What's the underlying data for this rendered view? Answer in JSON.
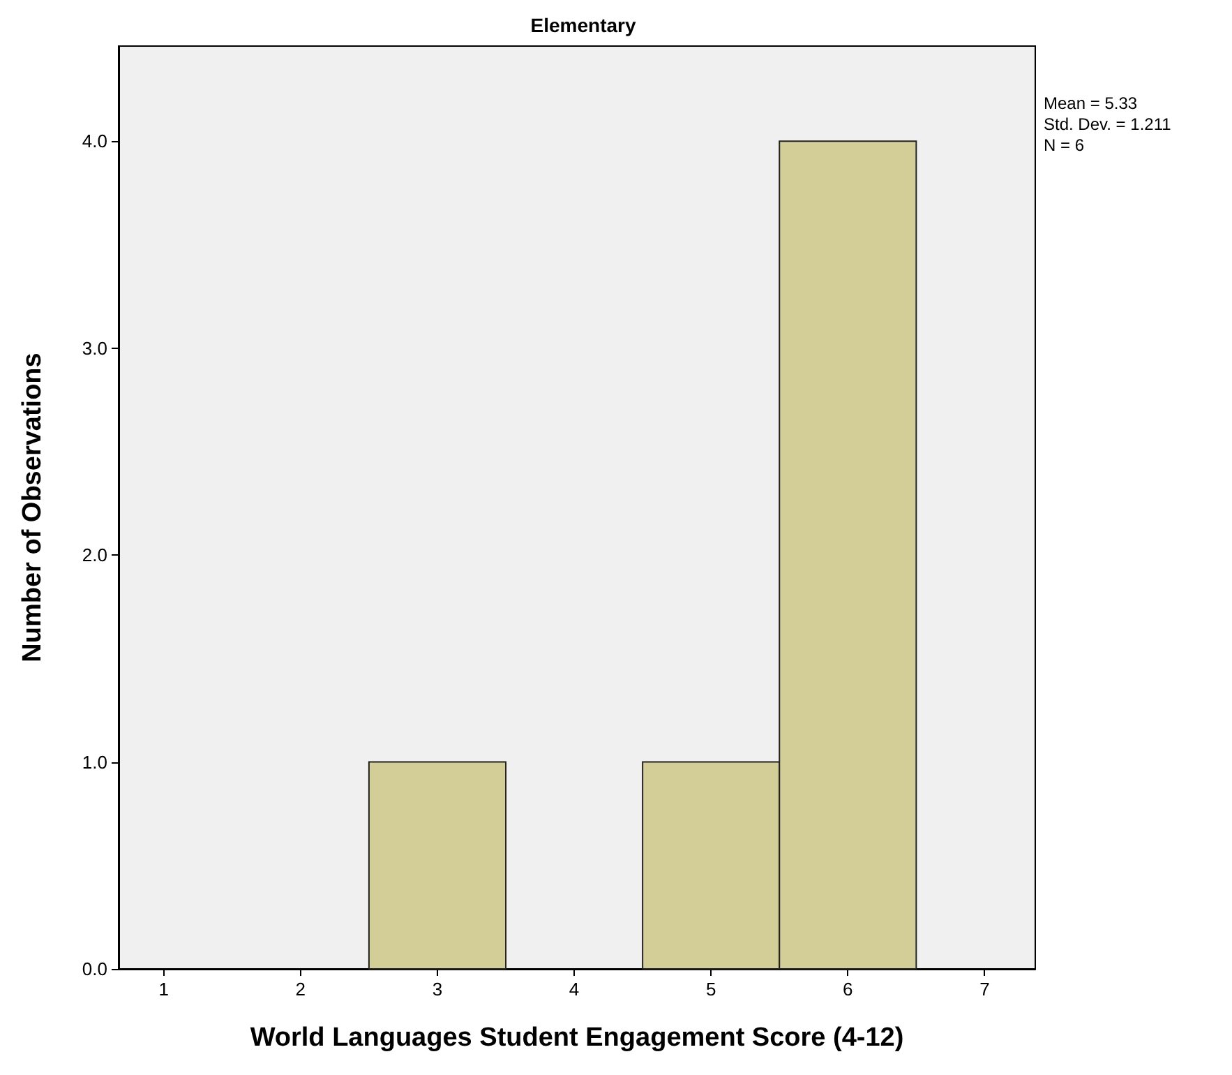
{
  "chart_data": {
    "type": "histogram",
    "title": "Elementary",
    "xlabel": "World Languages Student Engagement Score (4-12)",
    "ylabel": "Number of Observations",
    "bins": [
      2.5,
      3.5,
      4.5,
      5.5,
      6.5
    ],
    "values": [
      1,
      0,
      1,
      4
    ],
    "color": "#d3ce97",
    "xlim": [
      0.67,
      7.37
    ],
    "xticks": [
      1,
      2,
      3,
      4,
      5,
      6,
      7
    ],
    "ylim": [
      0,
      4.46
    ],
    "yticks": [
      {
        "value": 0,
        "label": "0.0"
      },
      {
        "value": 1,
        "label": "1.0"
      },
      {
        "value": 2,
        "label": "2.0"
      },
      {
        "value": 3,
        "label": "3.0"
      },
      {
        "value": 4,
        "label": "4.0"
      }
    ],
    "annotations": [
      "Mean = 5.33",
      "Std. Dev. = 1.211",
      "N = 6"
    ],
    "grid": false
  }
}
